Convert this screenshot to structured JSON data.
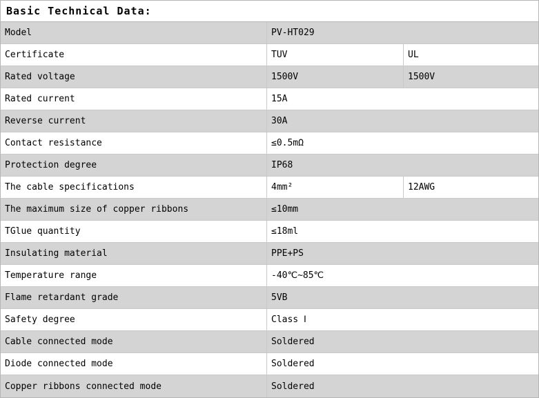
{
  "title": "Basic Technical Data:",
  "colors": {
    "shade_row": "#d4d4d4",
    "grid_line": "#c9c9c9",
    "outer_border": "#b5b5b5"
  },
  "table": {
    "rows": [
      {
        "label": "Model",
        "values": [
          "PV-HT029"
        ]
      },
      {
        "label": "Certificate",
        "values": [
          "TUV",
          "UL"
        ]
      },
      {
        "label": "Rated voltage",
        "values": [
          "1500V",
          "1500V"
        ]
      },
      {
        "label": "Rated current",
        "values": [
          "15A"
        ]
      },
      {
        "label": "Reverse current",
        "values": [
          "30A"
        ]
      },
      {
        "label": "Contact resistance",
        "values": [
          "≤0.5mΩ"
        ]
      },
      {
        "label": "Protection degree",
        "values": [
          "IP68"
        ]
      },
      {
        "label": "The cable specifications",
        "values": [
          "4mm²",
          "12AWG"
        ]
      },
      {
        "label": "The maximum size of copper ribbons",
        "values": [
          "≤10mm"
        ]
      },
      {
        "label": "TGlue quantity",
        "values": [
          "≤18ml"
        ]
      },
      {
        "label": "Insulating material",
        "values": [
          "PPE+PS"
        ]
      },
      {
        "label": "Temperature range",
        "values": [
          "-40℃~85℃"
        ]
      },
      {
        "label": "Flame retardant grade",
        "values": [
          "5VB"
        ]
      },
      {
        "label": "Safety degree",
        "values": [
          "Class Ⅰ"
        ]
      },
      {
        "label": "Cable connected mode",
        "values": [
          "Soldered"
        ]
      },
      {
        "label": "Diode connected mode",
        "values": [
          "Soldered"
        ]
      },
      {
        "label": "Copper ribbons connected mode",
        "values": [
          "Soldered"
        ]
      }
    ]
  }
}
